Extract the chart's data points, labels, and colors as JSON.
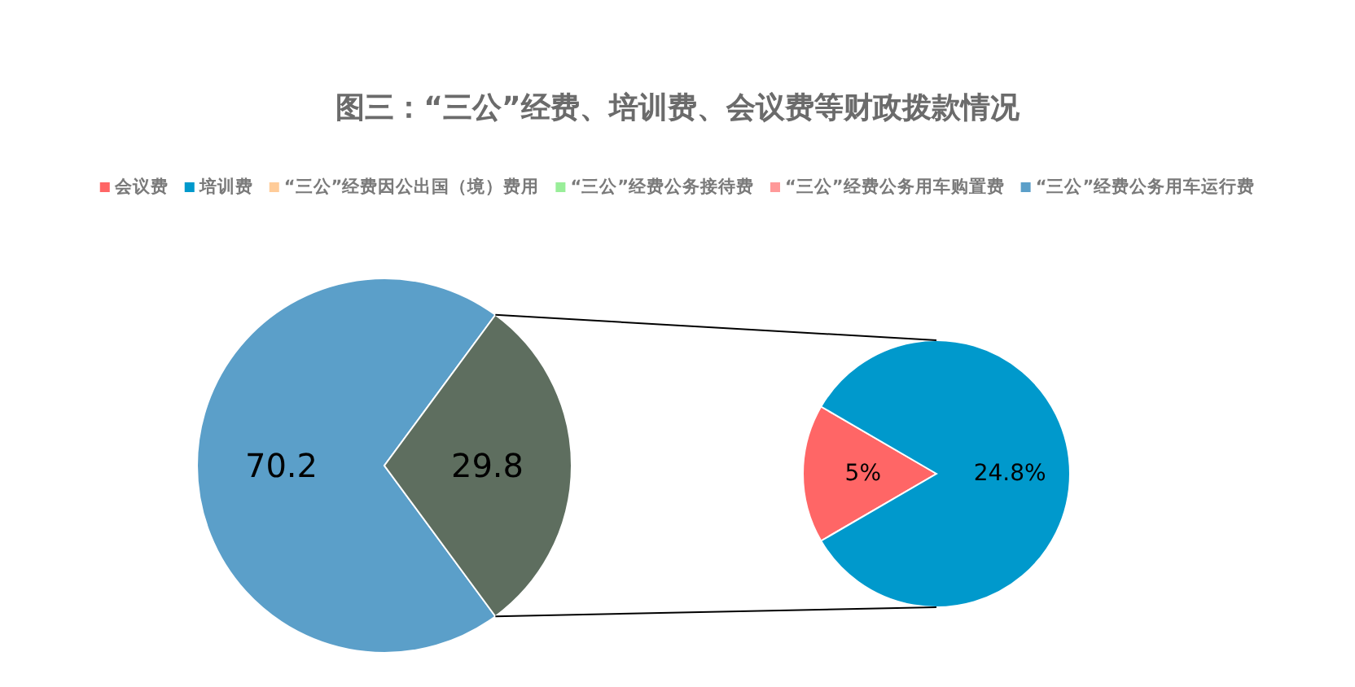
{
  "chart_data": [
    {
      "type": "pie",
      "title": "图三：“三公”经费、培训费、会议费等财政拨款情况",
      "legend": "top",
      "categories": [
        "“三公”经费因公出国（境）费用",
        "“三公”经费公务接待费",
        "“三公”经费公务用车购置费",
        "“三公”经费公务用车运行费",
        null
      ],
      "values": [
        0,
        0,
        0,
        70.2,
        29.8
      ],
      "colors": [
        "#ffcc99",
        "#99ee99",
        "#ff9999",
        "#5b9fc9",
        "#5e6e5f"
      ],
      "value_labels": [
        null,
        null,
        null,
        "70.2",
        "29.8"
      ]
    },
    {
      "type": "pie",
      "legend": "top",
      "categories": [
        "会议费",
        "培训费"
      ],
      "values": [
        5,
        24.8
      ],
      "colors": [
        "#ff6666",
        "#0099cc"
      ],
      "value_labels": [
        "5%",
        "24.8%"
      ]
    }
  ]
}
